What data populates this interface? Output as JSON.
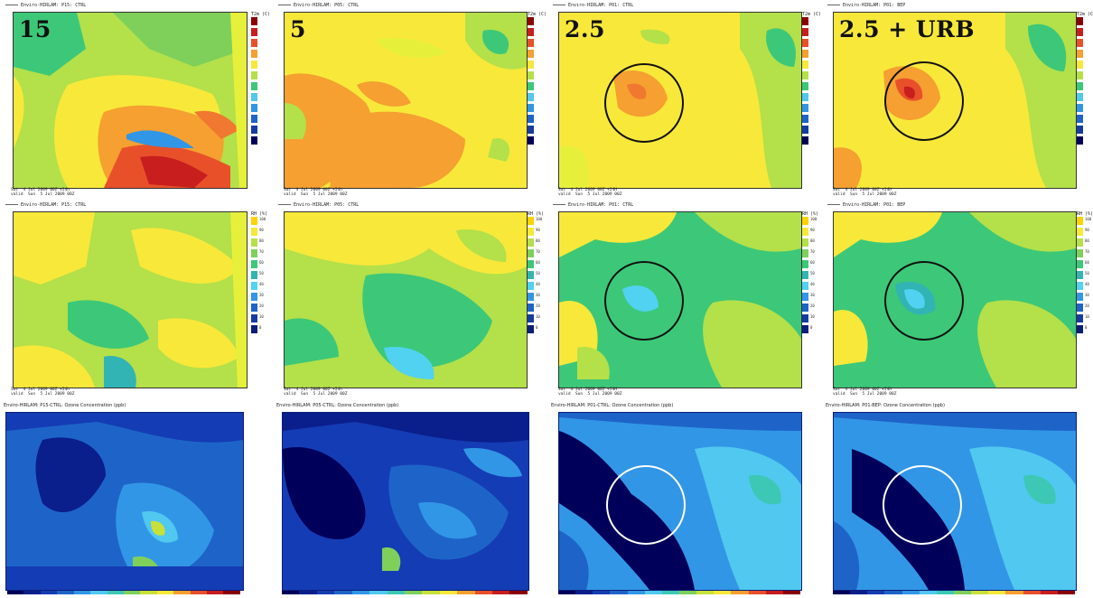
{
  "resolution_labels": [
    "15",
    "5",
    "2.5",
    "2.5 + URB"
  ],
  "temp_headers": [
    "Enviro-HIRLAM: P15: CTRL",
    "Enviro-HIRLAM: P05: CTRL",
    "Enviro-HIRLAM: P01: CTRL",
    "Enviro-HIRLAM: P01: BEP"
  ],
  "rh_headers": [
    "Enviro-HIRLAM: P15: CTRL",
    "Enviro-HIRLAM: P05: CTRL",
    "Enviro-HIRLAM: P01: CTRL",
    "Enviro-HIRLAM: P01: BEP"
  ],
  "ozone_headers": [
    "Enviro-HIRLAM: P15-CTRL: Ozone Concentration (ppb)",
    "Enviro-HIRLAM: P05-CTRL: Ozone Concentration (ppb)",
    "Enviro-HIRLAM: P01-CTRL: Ozone Concentration (ppb)",
    "Enviro-HIRLAM: P01-BEP: Ozone Concentration (ppb)"
  ],
  "temp_footers": [
    "Sat  4 Jul 2009 00Z +24h\nvalid  Sun  5 Jul 2009 00Z",
    "Sat  4 Jul 2009 00Z +24h\nvalid  Sun  5 Jul 2009 00Z",
    "Sat  4 Jul 2009 00Z +24H\nvalid  Sun  5 Jul 2009 00Z",
    "Sat  4 Jul 2009 00Z +24H\nvalid  Sun  5 Jul 2009 00Z"
  ],
  "rh_footers": [
    "Sat  4 Jul 2009 00Z +24h\nvalid  Sun  5 Jul 2009 00Z",
    "Sat  4 Jul 2009 00Z +24h\nvalid  Sun  5 Jul 2009 00Z",
    "Sat  4 Jul 2009 00Z +24H\nvalid  Sun  5 Jul 2009 00Z",
    "Sat  4 Jul 2009 00Z +24H\nvalid  Sun  5 Jul 2009 00Z"
  ],
  "temp_legend_title": "T2m (C)",
  "rh_legend_title": "RH (%)",
  "rh_legend_values": [
    "100",
    "90",
    "80",
    "70",
    "60",
    "50",
    "40",
    "30",
    "20",
    "10",
    "0"
  ],
  "colors": {
    "temp_scale": [
      "#8b0000",
      "#c81e1e",
      "#e8502a",
      "#f07830",
      "#f5a030",
      "#f7c63a",
      "#f8e83a",
      "#e6f03a",
      "#b4e04a",
      "#7ed05a",
      "#3cc878",
      "#32b4b4",
      "#50c8f0",
      "#3296e6",
      "#1e64c8",
      "#143ca0",
      "#0a1e78",
      "#00005a"
    ],
    "rh_scale": [
      "#ffd200",
      "#f8e83a",
      "#b4e04a",
      "#7ed05a",
      "#3cc878",
      "#32b4b4",
      "#50d2f0",
      "#3296e6",
      "#1e64c8",
      "#143ca0",
      "#0a1e78"
    ],
    "ozone_scale": [
      "#00005a",
      "#0a1e8c",
      "#143cb4",
      "#1e64c8",
      "#3296e6",
      "#50c8f0",
      "#3cc8b4",
      "#7ed05a",
      "#c8e03a",
      "#f8e83a",
      "#f5a030",
      "#e8502a",
      "#c81e1e",
      "#8b0000"
    ],
    "circle_black": "#111111",
    "circle_white": "#ffffff"
  }
}
